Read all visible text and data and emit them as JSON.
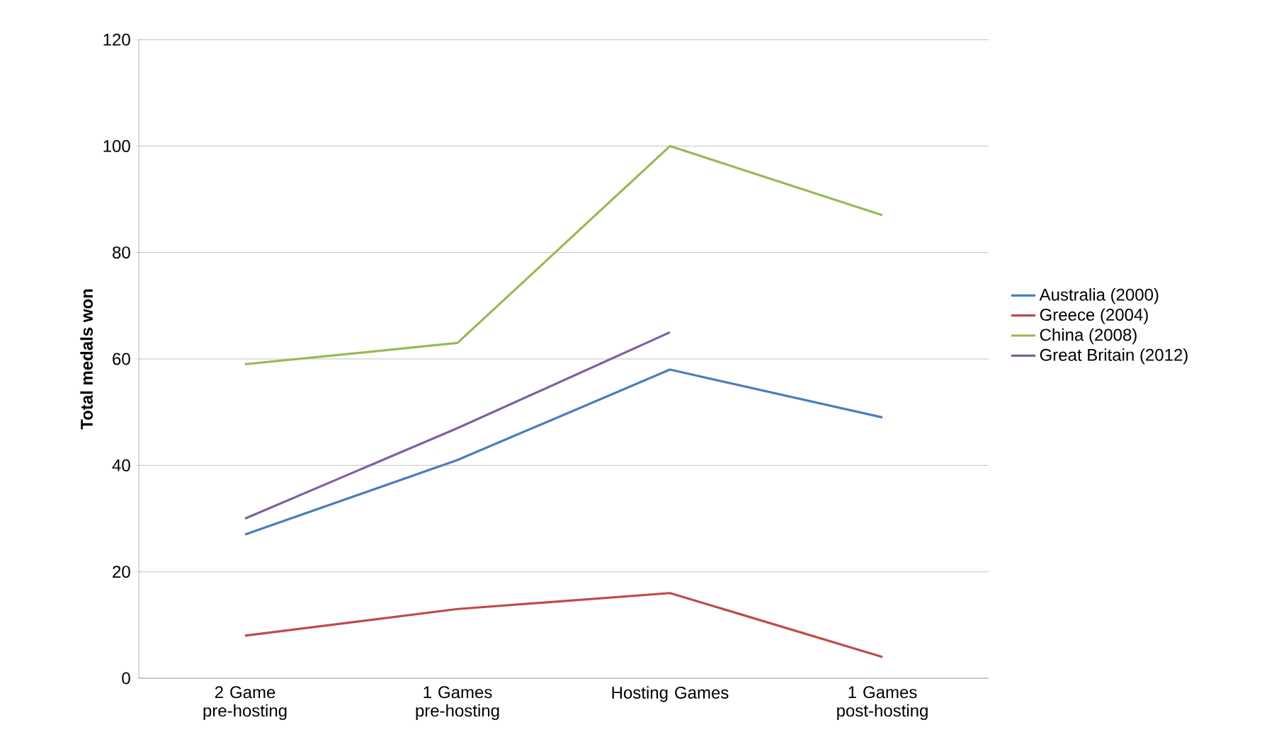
{
  "chart_data": {
    "type": "line",
    "ylabel": "Total medals won",
    "categories": [
      "2 Game pre-hosting",
      "1 Games pre-hosting",
      "Hosting Games",
      "1 Games post-hosting"
    ],
    "series": [
      {
        "name": "Australia (2000)",
        "color": "#4a7ebb",
        "values": [
          27,
          41,
          58,
          49
        ]
      },
      {
        "name": "Greece (2004)",
        "color": "#be4b48",
        "values": [
          8,
          13,
          16,
          4
        ]
      },
      {
        "name": "China (2008)",
        "color": "#98b954",
        "values": [
          59,
          63,
          100,
          87
        ]
      },
      {
        "name": "Great Britain (2012)",
        "color": "#7d60a0",
        "values": [
          30,
          47,
          65,
          null
        ]
      }
    ],
    "ylim": [
      0,
      120
    ],
    "yticks": [
      0,
      20,
      40,
      60,
      80,
      100,
      120
    ],
    "grid": "y",
    "legend": "right",
    "marker": "none",
    "line_style": "solid"
  }
}
